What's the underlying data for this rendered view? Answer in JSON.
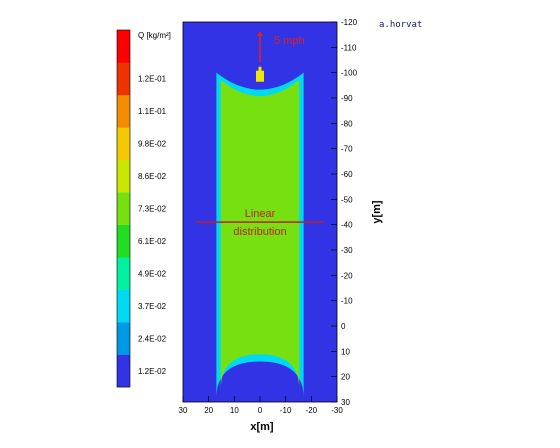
{
  "chart_data": {
    "type": "heatmap",
    "author": "a.horvat",
    "xlabel": "x[m]",
    "ylabel": "y[m]",
    "xlim": [
      30,
      -30
    ],
    "ylim": [
      30,
      -120
    ],
    "x_ticks": [
      30,
      20,
      10,
      0,
      -10,
      -20,
      -30
    ],
    "y_ticks": [
      30,
      20,
      10,
      0,
      -10,
      -20,
      -30,
      -40,
      -50,
      -60,
      -70,
      -80,
      -90,
      -100,
      -110,
      -120
    ],
    "colorbar": {
      "title": "Q [kg/m²]",
      "labels": [
        "1.2E-02",
        "2.4E-02",
        "3.7E-02",
        "4.9E-02",
        "6.1E-02",
        "7.3E-02",
        "8.6E-02",
        "9.8E-02",
        "1.1E-01",
        "1.2E-01"
      ],
      "colors": [
        "#3333e6",
        "#0099e6",
        "#00d9f2",
        "#00f0a0",
        "#22dd22",
        "#77e011",
        "#c8e600",
        "#f2c800",
        "#f28c00",
        "#ee3300",
        "#ff0000"
      ]
    },
    "background_color": "#3333e6",
    "plume": {
      "x_min": -17,
      "x_max": 17,
      "y_top": -100,
      "y_bottom": 14,
      "fill_color": "#77e011",
      "edge_color": "#00d9f2",
      "hotspot_color": "#c8e600"
    },
    "source": {
      "x": 0,
      "y": -98,
      "color": "#f2e600"
    },
    "wind": {
      "label": "5 mph",
      "color": "#e02020",
      "x": 0,
      "y_from": -104,
      "y_to": -116
    },
    "distribution_line": {
      "y": -41,
      "x_from": 25,
      "x_to": -25,
      "label_line1": "Linear",
      "label_line2": "distribution",
      "color": "#c02020"
    }
  }
}
